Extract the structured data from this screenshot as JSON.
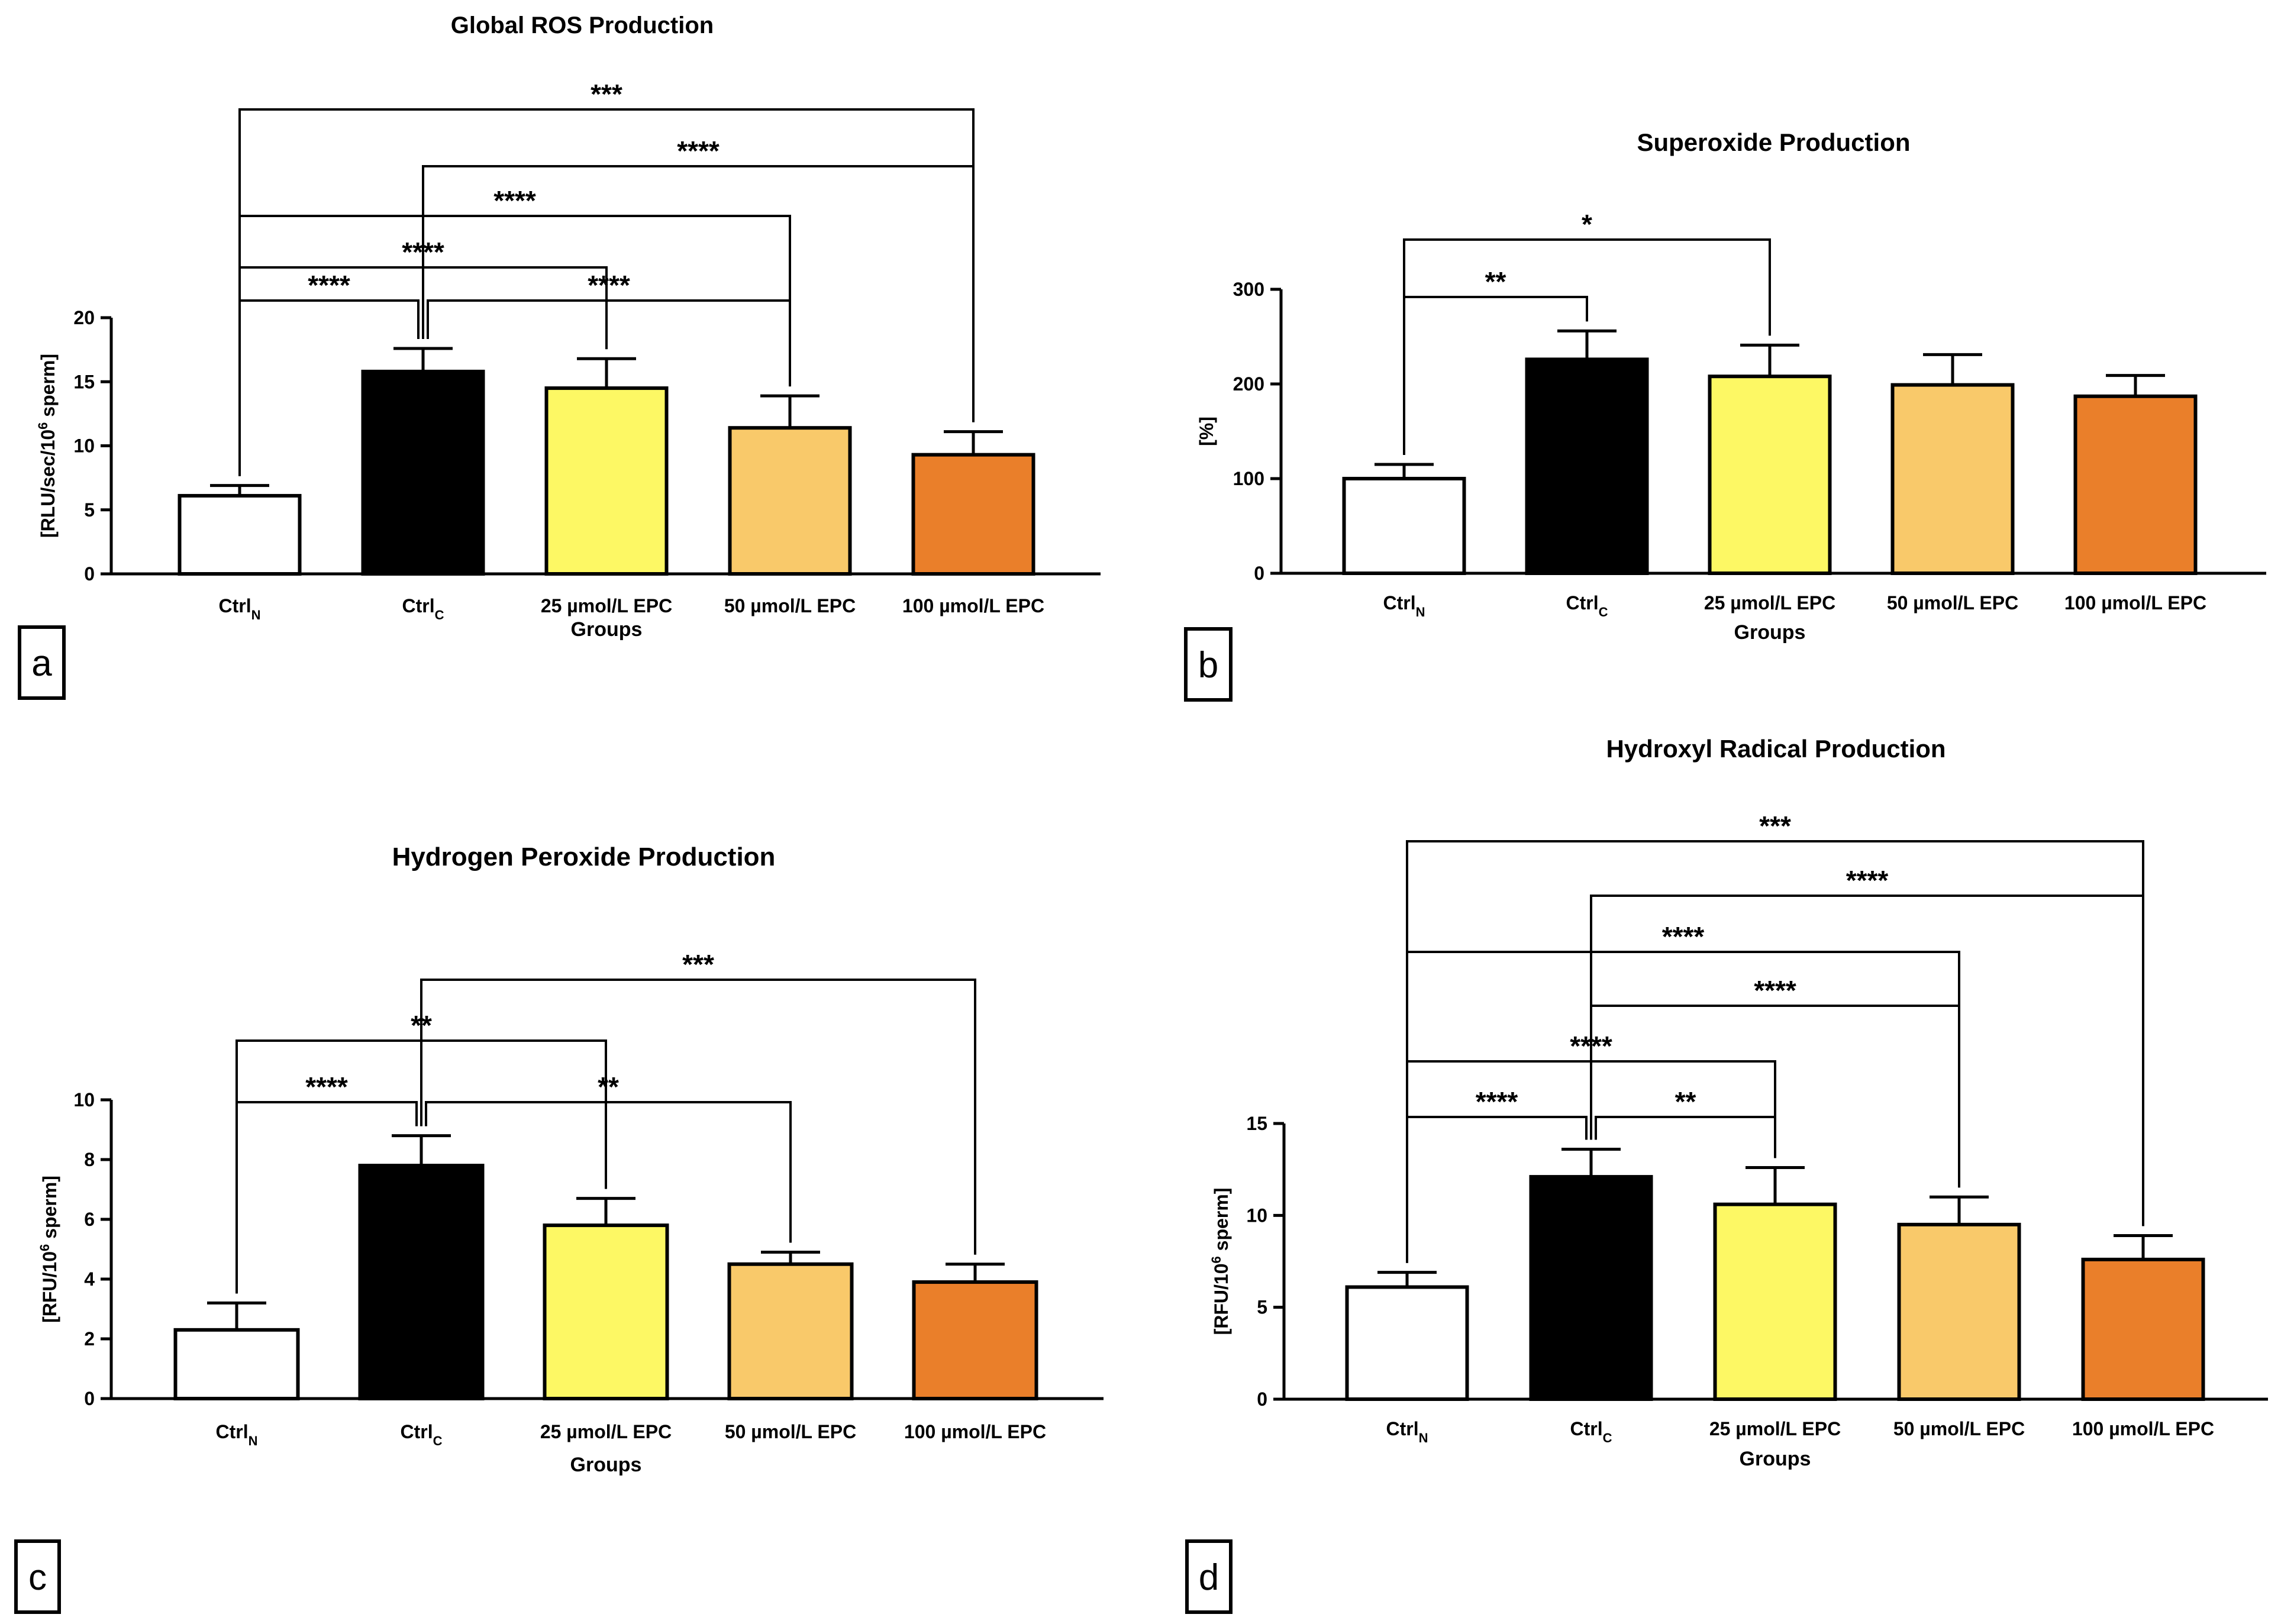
{
  "figure": {
    "categories": [
      {
        "main": "Ctrl",
        "sub": "N"
      },
      {
        "main": "Ctrl",
        "sub": "C"
      },
      {
        "main": "25 µmol/L EPC",
        "sub": ""
      },
      {
        "main": "50 µmol/L EPC",
        "sub": ""
      },
      {
        "main": "100 µmol/L EPC",
        "sub": ""
      }
    ],
    "bar_colors": [
      "#ffffff",
      "#000000",
      "#fdf864",
      "#f9c96a",
      "#ea7f2a"
    ]
  },
  "chart_data": [
    {
      "panel": "a",
      "type": "bar",
      "title": "Global ROS Production",
      "xlabel": "Groups",
      "ylabel": {
        "prefix": "[RLU/sec/10",
        "sup": "6",
        "suffix": " sperm]"
      },
      "ylim": [
        0,
        20
      ],
      "ticks": [
        0,
        5,
        10,
        15,
        20
      ],
      "values": [
        6.1,
        15.8,
        14.5,
        11.4,
        9.3
      ],
      "errors": [
        0.8,
        1.8,
        2.3,
        2.5,
        1.8
      ],
      "comparisons": [
        {
          "from": 0,
          "to": 1,
          "label": "****"
        },
        {
          "from": 1,
          "to": 3,
          "label": "****"
        },
        {
          "from": 0,
          "to": 2,
          "label": "****"
        },
        {
          "from": 0,
          "to": 3,
          "label": "****"
        },
        {
          "from": 1,
          "to": 4,
          "label": "****"
        },
        {
          "from": 0,
          "to": 4,
          "label": "***"
        }
      ]
    },
    {
      "panel": "b",
      "type": "bar",
      "title": "Superoxide Production",
      "xlabel": "Groups",
      "ylabel": {
        "prefix": "[%]",
        "sup": "",
        "suffix": ""
      },
      "ylim": [
        0,
        300
      ],
      "ticks": [
        0,
        100,
        200,
        300
      ],
      "values": [
        100,
        226,
        208,
        199,
        187
      ],
      "errors": [
        15,
        30,
        33,
        32,
        22
      ],
      "comparisons": [
        {
          "from": 0,
          "to": 1,
          "label": "**"
        },
        {
          "from": 0,
          "to": 2,
          "label": "*"
        }
      ]
    },
    {
      "panel": "c",
      "type": "bar",
      "title": "Hydrogen Peroxide Production",
      "xlabel": "Groups",
      "ylabel": {
        "prefix": "[RFU/10",
        "sup": "6",
        "suffix": " sperm]"
      },
      "ylim": [
        0,
        10
      ],
      "ticks": [
        0,
        2,
        4,
        6,
        8,
        10
      ],
      "values": [
        2.3,
        7.8,
        5.8,
        4.5,
        3.9
      ],
      "errors": [
        0.9,
        1.0,
        0.9,
        0.4,
        0.6
      ],
      "comparisons": [
        {
          "from": 0,
          "to": 1,
          "label": "****"
        },
        {
          "from": 1,
          "to": 3,
          "label": "**"
        },
        {
          "from": 0,
          "to": 2,
          "label": "**"
        },
        {
          "from": 1,
          "to": 4,
          "label": "***"
        }
      ]
    },
    {
      "panel": "d",
      "type": "bar",
      "title": "Hydroxyl Radical Production",
      "xlabel": "Groups",
      "ylabel": {
        "prefix": "[RFU/10",
        "sup": "6",
        "suffix": " sperm]"
      },
      "ylim": [
        0,
        15
      ],
      "ticks": [
        0,
        5,
        10,
        15
      ],
      "values": [
        6.1,
        12.1,
        10.6,
        9.5,
        7.6
      ],
      "errors": [
        0.8,
        1.5,
        2.0,
        1.5,
        1.3
      ],
      "comparisons": [
        {
          "from": 0,
          "to": 1,
          "label": "****"
        },
        {
          "from": 1,
          "to": 2,
          "label": "**"
        },
        {
          "from": 0,
          "to": 2,
          "label": "****"
        },
        {
          "from": 1,
          "to": 3,
          "label": "****"
        },
        {
          "from": 0,
          "to": 3,
          "label": "****"
        },
        {
          "from": 1,
          "to": 4,
          "label": "****"
        },
        {
          "from": 0,
          "to": 4,
          "label": "***"
        }
      ]
    }
  ]
}
